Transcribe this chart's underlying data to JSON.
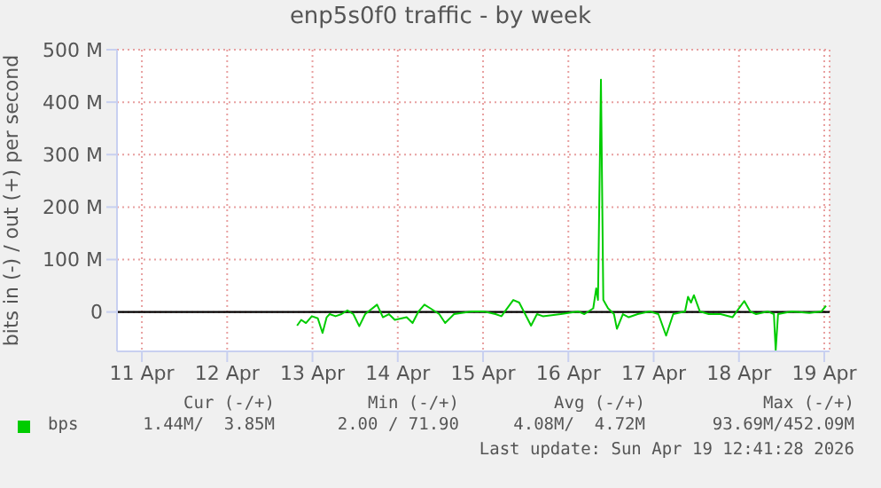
{
  "chart_data": {
    "type": "line",
    "title": "enp5s0f0 traffic - by week",
    "ylabel": "bits in (-) / out (+) per second",
    "xlim": [
      "--04-11T05:00",
      "--04-19T13:30"
    ],
    "xticks": [
      {
        "value": "--04-11T12:00",
        "label": "11 Apr"
      },
      {
        "value": "--04-12T12:00",
        "label": "12 Apr"
      },
      {
        "value": "--04-13T12:00",
        "label": "13 Apr"
      },
      {
        "value": "--04-14T12:00",
        "label": "14 Apr"
      },
      {
        "value": "--04-15T12:00",
        "label": "15 Apr"
      },
      {
        "value": "--04-16T12:00",
        "label": "16 Apr"
      },
      {
        "value": "--04-17T12:00",
        "label": "17 Apr"
      },
      {
        "value": "--04-18T12:00",
        "label": "18 Apr"
      },
      {
        "value": "--04-19T12:00",
        "label": "19 Apr"
      }
    ],
    "ylim": [
      -75,
      500
    ],
    "yticks": [
      0,
      {
        "value": 100,
        "label": "100 M"
      },
      {
        "value": 200,
        "label": "200 M"
      },
      {
        "value": 300,
        "label": "300 M"
      },
      {
        "value": 400,
        "label": "400 M"
      },
      {
        "value": 500,
        "label": "500 M"
      }
    ],
    "grid": true,
    "legend": "bottom",
    "marker": "none",
    "line_style": "solid",
    "ref_lines": [
      {
        "axis": "y",
        "value": 0,
        "color": "#000000"
      }
    ],
    "annotations": [
      "Cur (-/+)",
      "Min (-/+)",
      "Avg (-/+)",
      "Max (-/+)",
      "1.44M/  3.85M",
      "2.00 / 71.90",
      "4.08M/  4.72M",
      "93.69M/452.09M",
      "Last update: Sun Apr 19 12:41:28 2026"
    ],
    "series": [
      {
        "name": "bps",
        "color": "#00cc00",
        "x": [
          "--04-13T07:40",
          "--04-13T08:50",
          "--04-13T10:10",
          "--04-13T11:50",
          "--04-13T13:30",
          "--04-13T14:50",
          "--04-13T16:00",
          "--04-13T16:50",
          "--04-13T18:30",
          "--04-13T20:10",
          "--04-13T21:50",
          "--04-13T23:30",
          "--04-14T01:10",
          "--04-14T02:50",
          "--04-14T06:10",
          "--04-14T07:50",
          "--04-14T09:30",
          "--04-14T11:10",
          "--04-14T14:30",
          "--04-14T16:10",
          "--04-14T17:50",
          "--04-14T19:30",
          "--04-14T21:10",
          "--04-14T23:40",
          "--04-15T01:20",
          "--04-15T03:50",
          "--04-15T08:50",
          "--04-15T12:10",
          "--04-15T15:30",
          "--04-15T17:10",
          "--04-15T20:30",
          "--04-15T22:10",
          "--04-16T01:30",
          "--04-16T03:10",
          "--04-16T04:50",
          "--04-16T09:50",
          "--04-16T14:50",
          "--04-16T16:30",
          "--04-16T19:00",
          "--04-16T19:50",
          "--04-16T20:20",
          "--04-16T21:10",
          "--04-16T21:50",
          "--04-16T23:10",
          "--04-17T00:50",
          "--04-17T01:40",
          "--04-17T03:20",
          "--04-17T05:00",
          "--04-17T07:30",
          "--04-17T10:50",
          "--04-17T13:20",
          "--04-17T15:30",
          "--04-17T17:30",
          "--04-17T20:50",
          "--04-17T21:40",
          "--04-17T22:30",
          "--04-17T23:20",
          "--04-18T01:00",
          "--04-18T03:30",
          "--04-18T06:50",
          "--04-18T10:10",
          "--04-18T13:30",
          "--04-18T15:10",
          "--04-18T16:50",
          "--04-18T20:10",
          "--04-18T21:50",
          "--04-18T22:20",
          "--04-18T23:00",
          "--04-19T02:50",
          "--04-19T07:50",
          "--04-19T11:10",
          "--04-19T12:30"
        ],
        "values": [
          -26,
          -15,
          -21,
          -8,
          -12,
          -40,
          -10,
          -4,
          -8,
          -4,
          3,
          -4,
          -27,
          -4,
          14,
          -10,
          -4,
          -15,
          -10,
          -21,
          1,
          14,
          7,
          -4,
          -21,
          -4,
          1,
          1,
          -4,
          -8,
          23,
          18,
          -26,
          -4,
          -8,
          -4,
          1,
          -4,
          7,
          45,
          23,
          443,
          23,
          7,
          -4,
          -32,
          -4,
          -10,
          -4,
          1,
          -4,
          -45,
          -4,
          1,
          29,
          18,
          32,
          1,
          -4,
          -4,
          -10,
          21,
          1,
          -4,
          1,
          -4,
          -73,
          -4,
          1,
          -2,
          1,
          12
        ]
      }
    ]
  }
}
